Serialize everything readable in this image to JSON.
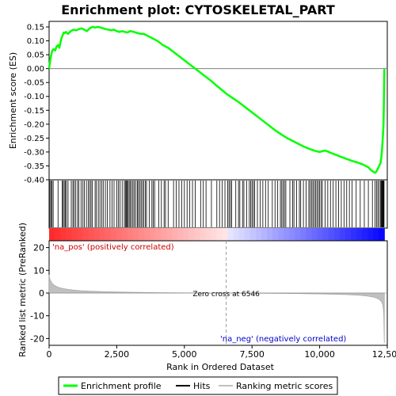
{
  "chart_data": {
    "type": "line",
    "title": "Enrichment plot: CYTOSKELETAL_PART",
    "x_axis": {
      "label": "Rank in Ordered Dataset",
      "range": [
        0,
        12500
      ],
      "ticks": [
        0,
        2500,
        5000,
        7500,
        10000,
        12500
      ],
      "tick_labels": [
        "0",
        "2,500",
        "5,000",
        "7,500",
        "10,000",
        "12,500"
      ]
    },
    "es_panel": {
      "ylabel": "Enrichment score (ES)",
      "ylim": [
        -0.4,
        0.17
      ],
      "ticks": [
        -0.4,
        -0.35,
        -0.3,
        -0.25,
        -0.2,
        -0.15,
        -0.1,
        -0.05,
        0.0,
        0.05,
        0.1,
        0.15
      ],
      "tick_labels": [
        "-0.40",
        "-0.35",
        "-0.30",
        "-0.25",
        "-0.20",
        "-0.15",
        "-0.10",
        "-0.05",
        "0.00",
        "0.05",
        "0.10",
        "0.15"
      ],
      "grid": false,
      "series": [
        {
          "name": "Enrichment profile",
          "color": "#00ff00",
          "x": [
            0,
            40,
            80,
            120,
            160,
            220,
            280,
            330,
            380,
            420,
            460,
            500,
            540,
            580,
            620,
            700,
            800,
            900,
            1000,
            1100,
            1200,
            1300,
            1400,
            1500,
            1600,
            1700,
            1800,
            1900,
            2000,
            2100,
            2200,
            2300,
            2400,
            2500,
            2600,
            2700,
            2800,
            2900,
            3000,
            3100,
            3200,
            3300,
            3400,
            3500,
            3600,
            3700,
            3800,
            3900,
            4000,
            4200,
            4400,
            4600,
            4800,
            5000,
            5200,
            5400,
            5600,
            5800,
            6000,
            6200,
            6400,
            6546,
            6800,
            7000,
            7200,
            7400,
            7600,
            7800,
            8000,
            8200,
            8400,
            8600,
            8800,
            9000,
            9200,
            9400,
            9600,
            9800,
            10000,
            10100,
            10200,
            10300,
            10400,
            10600,
            10800,
            11000,
            11200,
            11400,
            11600,
            11800,
            11900,
            12000,
            12050,
            12100,
            12150,
            12200,
            12250,
            12280,
            12300,
            12320,
            12340,
            12360,
            12370,
            12380,
            12390
          ],
          "y": [
            0.0,
            0.03,
            0.05,
            0.065,
            0.07,
            0.065,
            0.08,
            0.085,
            0.075,
            0.095,
            0.11,
            0.12,
            0.13,
            0.128,
            0.132,
            0.125,
            0.135,
            0.14,
            0.138,
            0.142,
            0.145,
            0.14,
            0.135,
            0.145,
            0.15,
            0.148,
            0.15,
            0.148,
            0.145,
            0.142,
            0.14,
            0.138,
            0.14,
            0.135,
            0.132,
            0.135,
            0.132,
            0.13,
            0.135,
            0.133,
            0.13,
            0.127,
            0.125,
            0.125,
            0.12,
            0.115,
            0.11,
            0.105,
            0.1,
            0.085,
            0.075,
            0.06,
            0.045,
            0.03,
            0.015,
            0.0,
            -0.015,
            -0.03,
            -0.045,
            -0.062,
            -0.078,
            -0.09,
            -0.107,
            -0.12,
            -0.135,
            -0.15,
            -0.165,
            -0.18,
            -0.195,
            -0.21,
            -0.225,
            -0.238,
            -0.25,
            -0.26,
            -0.27,
            -0.28,
            -0.288,
            -0.295,
            -0.3,
            -0.297,
            -0.295,
            -0.298,
            -0.303,
            -0.31,
            -0.318,
            -0.325,
            -0.332,
            -0.338,
            -0.345,
            -0.355,
            -0.365,
            -0.372,
            -0.375,
            -0.37,
            -0.36,
            -0.35,
            -0.34,
            -0.32,
            -0.3,
            -0.27,
            -0.24,
            -0.2,
            -0.15,
            -0.08,
            0.0
          ]
        }
      ]
    },
    "hits_panel": {
      "series_name": "Hits",
      "color": "#000000",
      "hit_ranks": [
        30,
        70,
        110,
        150,
        330,
        480,
        520,
        560,
        600,
        640,
        700,
        820,
        880,
        920,
        980,
        1050,
        1100,
        1180,
        1250,
        1300,
        1380,
        1450,
        1500,
        1550,
        1600,
        1700,
        1750,
        1820,
        1880,
        1950,
        2000,
        2080,
        2150,
        2250,
        2330,
        2400,
        2500,
        2560,
        2620,
        2700,
        2780,
        2820,
        2850,
        2880,
        2920,
        2960,
        3000,
        3050,
        3100,
        3150,
        3200,
        3260,
        3300,
        3350,
        3400,
        3450,
        3500,
        3560,
        3600,
        3700,
        3800,
        3850,
        3900,
        4050,
        4150,
        4250,
        4300,
        4400,
        4600,
        4700,
        4800,
        4900,
        5000,
        5100,
        5200,
        5300,
        5400,
        5600,
        5700,
        5800,
        6000,
        6200,
        6300,
        6400,
        6500,
        6600,
        6650,
        6700,
        6750,
        6900,
        7000,
        7050,
        7150,
        7200,
        7300,
        7400,
        7450,
        7500,
        7550,
        7600,
        7700,
        7800,
        7900,
        8000,
        8100,
        8250,
        8350,
        8450,
        8550,
        8600,
        8650,
        8700,
        8750,
        8900,
        9000,
        9050,
        9150,
        9250,
        9300,
        9400,
        9500,
        9600,
        9650,
        9700,
        9750,
        9800,
        9850,
        9900,
        9950,
        10000,
        10050,
        10100,
        10200,
        10300,
        10400,
        10500,
        10600,
        10700,
        10800,
        10900,
        11000,
        11100,
        11200,
        11350,
        11500,
        11650,
        11800,
        11950,
        12050,
        12100,
        12150,
        12200,
        12250,
        12280,
        12300,
        12320,
        12340,
        12360,
        12380
      ]
    },
    "rank_metric_panel": {
      "series_name": "Ranking metric scores",
      "color": "#c0c0c0",
      "ylabel": "Ranked list metric (PreRanked)",
      "ylim": [
        -23,
        23
      ],
      "ticks": [
        -20,
        -10,
        0,
        10,
        20
      ],
      "tick_labels": [
        "-20",
        "-10",
        "0",
        "10",
        "20"
      ],
      "x": [
        0,
        20,
        50,
        100,
        150,
        200,
        300,
        400,
        500,
        700,
        900,
        1200,
        1500,
        2000,
        2500,
        3000,
        3500,
        4000,
        4500,
        5000,
        5500,
        6000,
        6546,
        7000,
        7500,
        8000,
        8500,
        9000,
        9500,
        10000,
        10500,
        11000,
        11500,
        11800,
        12000,
        12100,
        12200,
        12250,
        12300,
        12330,
        12350,
        12370,
        12390
      ],
      "y": [
        8.0,
        6.5,
        5.5,
        4.5,
        3.8,
        3.3,
        2.7,
        2.3,
        2.0,
        1.6,
        1.3,
        1.0,
        0.8,
        0.6,
        0.45,
        0.35,
        0.25,
        0.18,
        0.12,
        0.08,
        0.05,
        0.02,
        0.0,
        -0.03,
        -0.06,
        -0.1,
        -0.15,
        -0.2,
        -0.28,
        -0.38,
        -0.5,
        -0.7,
        -1.0,
        -1.4,
        -1.8,
        -2.2,
        -2.8,
        -3.3,
        -4.0,
        -5.0,
        -6.5,
        -9.0,
        -22.0
      ],
      "zero_cross_rank": 6546,
      "zero_cross_text": "Zero cross at 6546",
      "pos_label": "'na_pos' (positively correlated)",
      "neg_label": "'na_neg' (negatively correlated)",
      "pos_color": "#ff0000",
      "neg_color": "#0000ff"
    },
    "legend": {
      "placement": "bottom",
      "entries": [
        {
          "label": "Enrichment profile",
          "color": "#00ff00"
        },
        {
          "label": "Hits",
          "color": "#000000"
        },
        {
          "label": "Ranking metric scores",
          "color": "#c0c0c0"
        }
      ]
    }
  }
}
